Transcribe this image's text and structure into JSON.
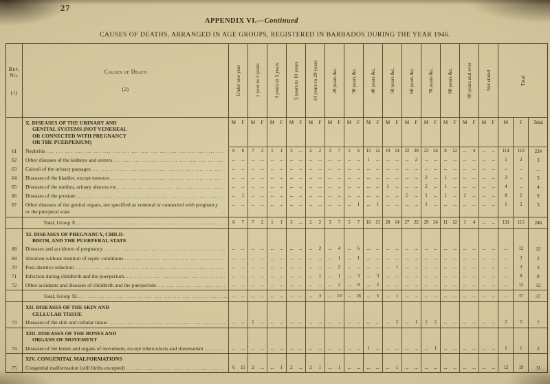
{
  "page": {
    "number": "27",
    "appendix_label": "APPENDIX VI.—",
    "appendix_continued": "Continued",
    "main_title": "CAUSES OF DEATHS, ARRANGED IN AGE GROUPS, REGISTERED IN BARBADOS DURING THE YEAR 1946."
  },
  "table": {
    "ref_no_lines": [
      "Ref.",
      "No."
    ],
    "ref_no_sub": "(1)",
    "causes_header": "Causes of Death",
    "causes_sub": "(2)",
    "age_group_headers": [
      "Under one year",
      "1 year to 3 years",
      "3 years to 5 years",
      "5 years to 10 years",
      "10 years to 20 years",
      "20 years &c.",
      "30 years &c.",
      "40 years &c.",
      "50 years &c.",
      "60 years &c.",
      "70 years &c.",
      "80 years &c.",
      "90 years and over",
      "Not stated"
    ],
    "total_header": "Total",
    "sex_labels": [
      "M",
      "F"
    ],
    "total_sub_labels": [
      "M",
      "F",
      "Total"
    ],
    "groups": [
      {
        "mf_header": true,
        "title_lines": [
          "X. DISEASES OF THE URINARY AND",
          "GENITAL SYSTEMS (NOT VENEREAL",
          "OR CONNECTED WITH PREGNANCY",
          "OR THE PUERPERIUM)"
        ],
        "rows": [
          {
            "ref": "61",
            "cause": "Nephritis",
            "cells": [
              "6",
              "6",
              "7",
              "2",
              "1",
              "1",
              "3",
              "...",
              "2",
              "2",
              "3",
              "7",
              "5",
              "6",
              "15",
              "12",
              "19",
              "14",
              "22",
              "20",
              "23",
              "24",
              "8",
              "12",
              "...",
              "4",
              "...",
              "..."
            ],
            "m": "114",
            "f": "110",
            "total": "224"
          },
          {
            "ref": "62",
            "cause": "Other diseases of the kidneys and ureters",
            "cells": [
              "...",
              "...",
              "...",
              "...",
              "...",
              "...",
              "...",
              "...",
              "...",
              "...",
              "...",
              "...",
              "...",
              "...",
              "1",
              "...",
              "...",
              "...",
              "...",
              "2",
              "...",
              "...",
              "...",
              "...",
              "...",
              "...",
              "...",
              "..."
            ],
            "m": "1",
            "f": "2",
            "total": "3"
          },
          {
            "ref": "63",
            "cause": "Calculi of the urinary passages",
            "cells": [
              "...",
              "...",
              "...",
              "...",
              "...",
              "...",
              "...",
              "...",
              "...",
              "...",
              "...",
              "...",
              "...",
              "...",
              "...",
              "...",
              "...",
              "...",
              "...",
              "...",
              "...",
              "...",
              "...",
              "...",
              "...",
              "...",
              "...",
              "..."
            ],
            "m": "...",
            "f": "...",
            "total": "..."
          },
          {
            "ref": "64",
            "cause": "Diseases of the bladder, except tumours",
            "cells": [
              "...",
              "...",
              "...",
              "...",
              "...",
              "...",
              "...",
              "...",
              "...",
              "...",
              "...",
              "...",
              "...",
              "...",
              "...",
              "...",
              "...",
              "...",
              "...",
              "...",
              "2",
              "...",
              "1",
              "...",
              "...",
              "...",
              "...",
              "..."
            ],
            "m": "3",
            "f": "...",
            "total": "3"
          },
          {
            "ref": "65",
            "cause": "Diseases of the urethra, urinary abscess etc.",
            "cells": [
              "...",
              "...",
              "...",
              "...",
              "...",
              "...",
              "...",
              "...",
              "...",
              "...",
              "...",
              "...",
              "...",
              "...",
              "...",
              "...",
              "1",
              "...",
              "...",
              "...",
              "2",
              "...",
              "1",
              "...",
              "...",
              "...",
              "...",
              "..."
            ],
            "m": "4",
            "f": "...",
            "total": "4"
          },
          {
            "ref": "66",
            "cause": "Diseases of the prostate",
            "cells": [
              "...",
              "1",
              "...",
              "...",
              "...",
              "...",
              "...",
              "...",
              "...",
              "...",
              "...",
              "...",
              "...",
              "...",
              "...",
              "...",
              "...",
              "...",
              "5",
              "...",
              "1",
              "...",
              "1",
              "...",
              "1",
              "...",
              "...",
              "..."
            ],
            "m": "8",
            "f": "1",
            "total": "9"
          },
          {
            "ref": "67",
            "cause": "Other diseases of the genital organs, not specified as venereal or connected with pregnancy or the puerperal state",
            "cells": [
              "...",
              "...",
              "...",
              "...",
              "...",
              "...",
              "...",
              "...",
              "...",
              "...",
              "...",
              "...",
              "...",
              "1",
              "...",
              "1",
              "...",
              "...",
              "...",
              "...",
              "1",
              "...",
              "...",
              "...",
              "...",
              "...",
              "...",
              "..."
            ],
            "m": "1",
            "f": "2",
            "total": "3"
          }
        ],
        "total_row": {
          "label": "Total, Group X",
          "cells": [
            "6",
            "7",
            "7",
            "2",
            "1",
            "1",
            "3",
            "...",
            "2",
            "2",
            "3",
            "7",
            "5",
            "7",
            "16",
            "13",
            "20",
            "14",
            "27",
            "22",
            "29",
            "24",
            "11",
            "12",
            "1",
            "4",
            "...",
            "..."
          ],
          "m": "131",
          "f": "115",
          "total": "246"
        }
      },
      {
        "mf_header": false,
        "title_lines": [
          "XI. DISEASES OF PREGNANCY, CHILD-",
          "BIRTH, AND THE PUERPERAL STATE"
        ],
        "rows": [
          {
            "ref": "68",
            "cause": "Diseases and accidents of pregnancy",
            "cells": [
              "...",
              "...",
              "...",
              "...",
              "...",
              "...",
              "...",
              "...",
              "...",
              "2",
              "...",
              "4",
              "...",
              "6",
              "...",
              "...",
              "...",
              "...",
              "...",
              "...",
              "...",
              "...",
              "...",
              "...",
              "...",
              "...",
              "...",
              "..."
            ],
            "m": "...",
            "f": "12",
            "total": "12"
          },
          {
            "ref": "69",
            "cause": "Abortion without mention of septic conditions",
            "cells": [
              "...",
              "...",
              "...",
              "...",
              "...",
              "...",
              "...",
              "...",
              "...",
              "...",
              "...",
              "1",
              "...",
              "1",
              "...",
              "...",
              "...",
              "...",
              "...",
              "...",
              "...",
              "...",
              "...",
              "...",
              "...",
              "...",
              "...",
              "..."
            ],
            "m": "...",
            "f": "2",
            "total": "2"
          },
          {
            "ref": "70",
            "cause": "Post-abortive infection",
            "cells": [
              "...",
              "...",
              "...",
              "...",
              "...",
              "...",
              "...",
              "...",
              "...",
              "...",
              "...",
              "2",
              "...",
              "...",
              "...",
              "...",
              "...",
              "1",
              "...",
              "...",
              "...",
              "...",
              "...",
              "...",
              "...",
              "...",
              "...",
              "..."
            ],
            "m": "...",
            "f": "3",
            "total": "3"
          },
          {
            "ref": "71",
            "cause": "Infection during childbirth and the puerperium",
            "cells": [
              "...",
              "...",
              "...",
              "...",
              "...",
              "...",
              "...",
              "...",
              "...",
              "1",
              "...",
              "1",
              "...",
              "3",
              "...",
              "3",
              "...",
              "...",
              "...",
              "...",
              "...",
              "...",
              "...",
              "...",
              "...",
              "...",
              "...",
              "..."
            ],
            "m": "...",
            "f": "8",
            "total": "8"
          },
          {
            "ref": "72",
            "cause": "Other accidents and diseases of childbirth and the puerperium",
            "cells": [
              "...",
              "...",
              "...",
              "...",
              "...",
              "...",
              "...",
              "...",
              "...",
              "...",
              "...",
              "2",
              "...",
              "8",
              "...",
              "2",
              "...",
              "...",
              "...",
              "...",
              "...",
              "...",
              "...",
              "...",
              "...",
              "...",
              "...",
              "..."
            ],
            "m": "...",
            "f": "12",
            "total": "12"
          }
        ],
        "total_row": {
          "label": "Total, Group XI",
          "cells": [
            "...",
            "...",
            "...",
            "...",
            "...",
            "...",
            "...",
            "...",
            "...",
            "3",
            "...",
            "10",
            "...",
            "18",
            "...",
            "5",
            "...",
            "1",
            "...",
            "...",
            "...",
            "...",
            "...",
            "...",
            "...",
            "...",
            "...",
            "..."
          ],
          "m": "...",
          "f": "37",
          "total": "37"
        }
      },
      {
        "mf_header": false,
        "title_lines": [
          "XII. DISEASES OF THE SKIN AND",
          "CELLULAR TISSUE"
        ],
        "rows": [
          {
            "ref": "73",
            "cause": "Diseases of the skin and cellular tissue",
            "rule_below": true,
            "cells": [
              "...",
              "...",
              "1",
              "...",
              "...",
              "...",
              "...",
              "...",
              "...",
              "...",
              "...",
              "...",
              "...",
              "...",
              "...",
              "...",
              "...",
              "2",
              "...",
              "1",
              "1",
              "2",
              "...",
              "...",
              "...",
              "...",
              "...",
              "..."
            ],
            "m": "2",
            "f": "5",
            "total": "7"
          }
        ]
      },
      {
        "mf_header": false,
        "title_lines": [
          "XIII. DISEASES OF THE BONES AND",
          "ORGANS OF MOVEMENT"
        ],
        "rows": [
          {
            "ref": "74",
            "cause": "Diseases of the bones and organs of movement, except tuberculosis and rheumatism",
            "rule_below": true,
            "cells": [
              "...",
              "...",
              "...",
              "...",
              "...",
              "...",
              "...",
              "...",
              "...",
              "...",
              "...",
              "...",
              "...",
              "...",
              "1",
              "...",
              "...",
              "...",
              "...",
              "...",
              "...",
              "1",
              "...",
              "...",
              "...",
              "...",
              "...",
              "..."
            ],
            "m": "1",
            "f": "1",
            "total": "2"
          }
        ]
      },
      {
        "mf_header": false,
        "title_lines": [
          "XIV. CONGENITAL MALFORMATIONS"
        ],
        "rows": [
          {
            "ref": "75",
            "cause": "Congenital malformation (still births excepted)",
            "cells": [
              "6",
              "15",
              "2",
              "...",
              "...",
              "1",
              "2",
              "...",
              "2",
              "1",
              "...",
              "1",
              "...",
              "...",
              "...",
              "...",
              "...",
              "1",
              "...",
              "...",
              "...",
              "...",
              "...",
              "...",
              "...",
              "...",
              "...",
              "..."
            ],
            "m": "12",
            "f": "19",
            "total": "31"
          }
        ]
      }
    ]
  }
}
